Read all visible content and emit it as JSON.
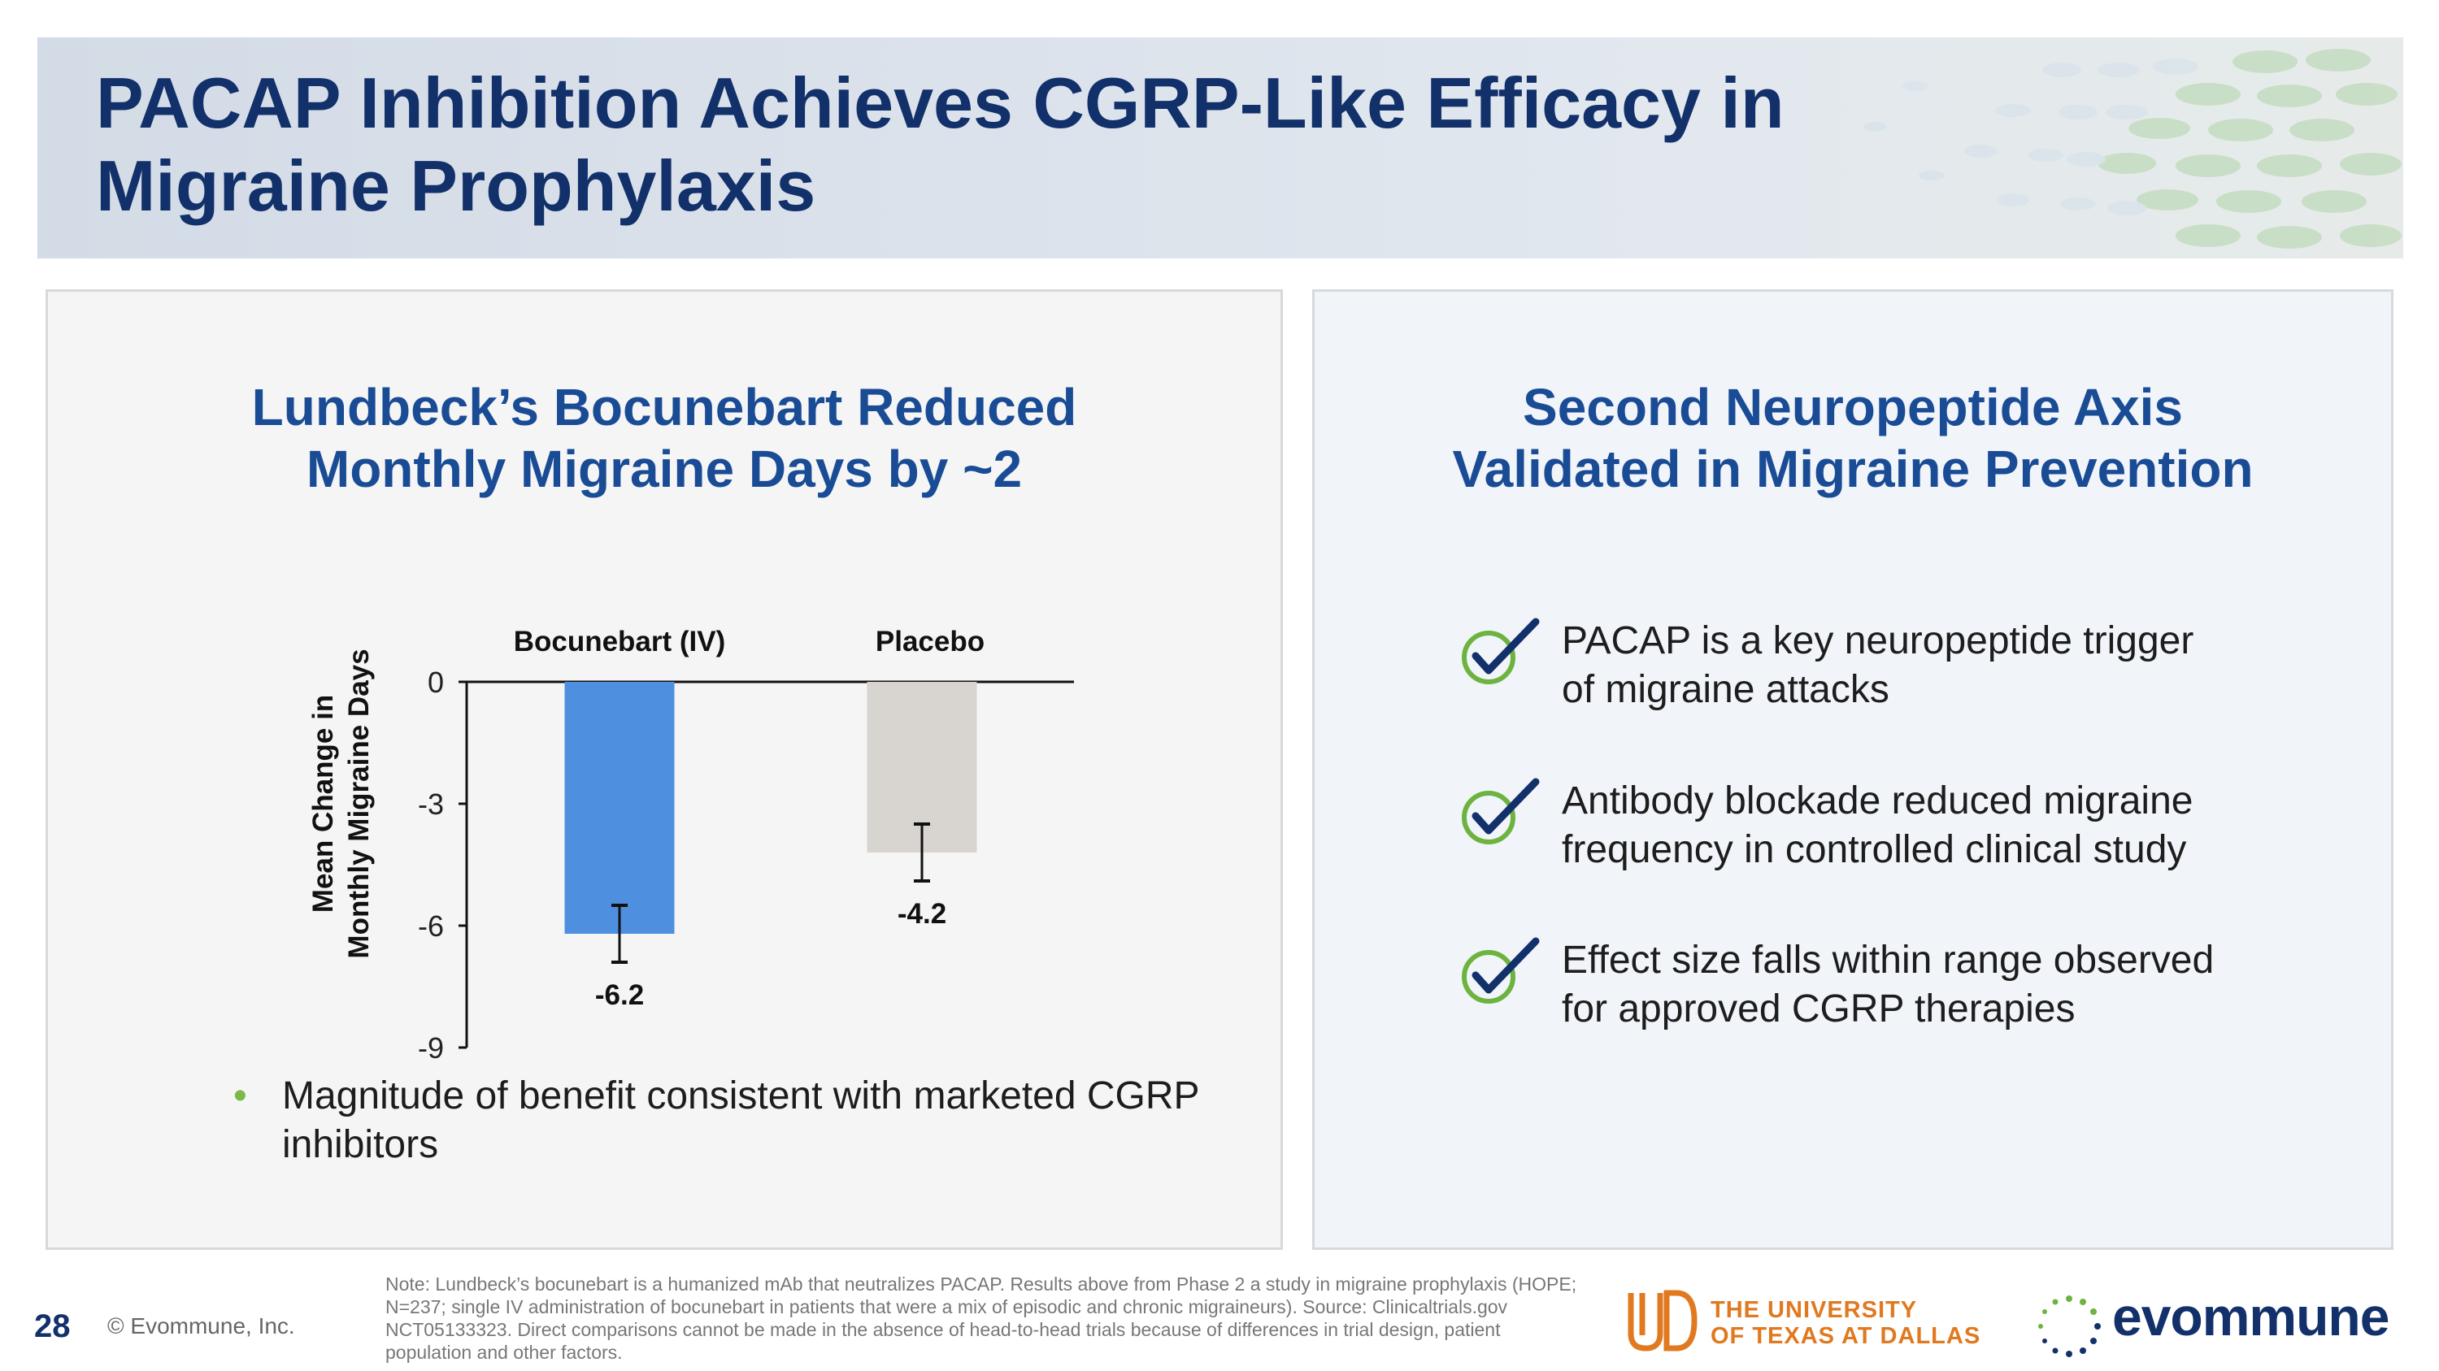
{
  "slide": {
    "title": "PACAP Inhibition Achieves CGRP-Like Efficacy in Migraine Prophylaxis",
    "page_number": "28",
    "copyright": "© Evommune, Inc."
  },
  "left_panel": {
    "title_line1": "Lundbeck’s Bocunebart Reduced",
    "title_line2": "Monthly Migraine Days by ~2",
    "bullet": "Magnitude of benefit consistent with marketed CGRP inhibitors"
  },
  "chart_data": {
    "type": "bar",
    "categories": [
      "Bocunebart (IV)",
      "Placebo"
    ],
    "values": [
      -6.2,
      -4.2
    ],
    "value_labels": [
      "-6.2",
      "-4.2"
    ],
    "error_low": [
      -6.9,
      -4.9
    ],
    "error_high": [
      -5.5,
      -3.5
    ],
    "colors": [
      "#4f8fe0",
      "#d8d4cf"
    ],
    "ylabel_line1": "Mean Change in",
    "ylabel_line2": "Monthly Migraine Days",
    "ylim": [
      -9,
      0
    ],
    "yticks": [
      0,
      -3,
      -6,
      -9
    ],
    "ytick_labels": [
      "0",
      "-3",
      "-6",
      "-9"
    ],
    "grid": false,
    "title": ""
  },
  "right_panel": {
    "title_line1": "Second Neuropeptide Axis",
    "title_line2": "Validated in Migraine Prevention",
    "items": [
      {
        "line1": "PACAP is a key neuropeptide trigger",
        "line2": "of migraine attacks"
      },
      {
        "line1": "Antibody blockade reduced migraine",
        "line2": "frequency in controlled clinical study"
      },
      {
        "line1": "Effect size falls within range observed",
        "line2": "for approved CGRP therapies"
      }
    ]
  },
  "footer": {
    "note": "Note: Lundbeck’s bocunebart is a humanized mAb that neutralizes PACAP. Results above from Phase 2 a study in migraine prophylaxis (HOPE; N=237; single IV administration of bocunebart in patients that were a mix of episodic and chronic migraineurs). Source: Clinicaltrials.gov NCT05133323. Direct comparisons cannot be made in the absence of head-to-head trials because of differences in trial design, patient population and other factors.",
    "utd_line1": "THE UNIVERSITY",
    "utd_line2": "OF TEXAS AT DALLAS",
    "evommune": "evommune"
  },
  "colors": {
    "title": "#12306a",
    "panel_title": "#1a4c96",
    "check_circle": "#6db33f",
    "check_mark": "#12306a",
    "utd_orange": "#e0791f"
  }
}
